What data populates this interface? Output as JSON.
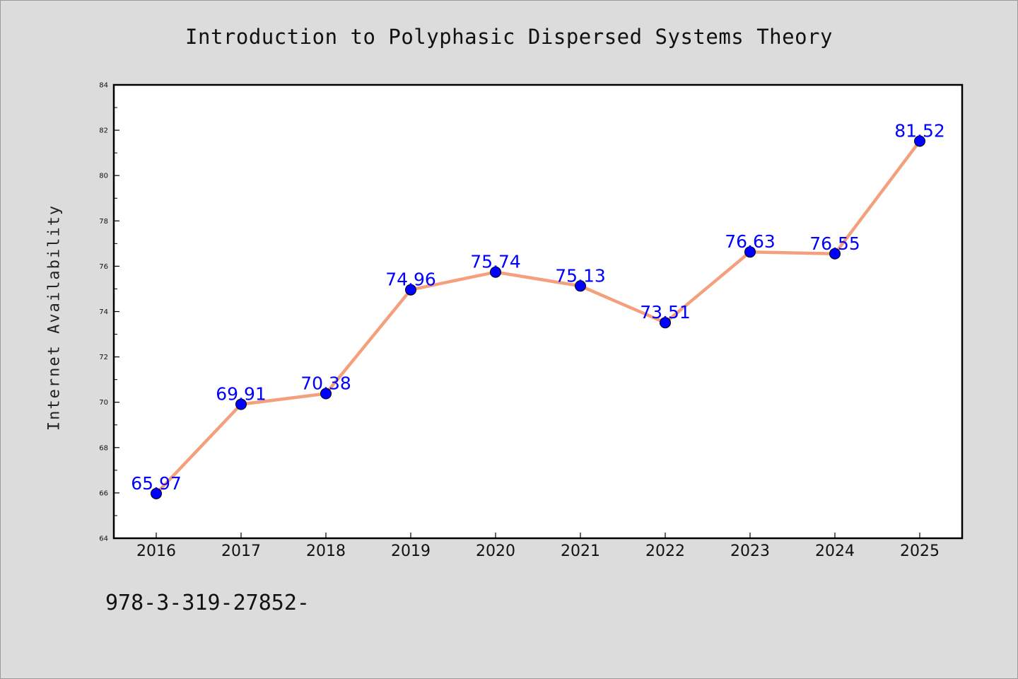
{
  "figure": {
    "background": "#dcdcdc",
    "plot_background": "#ffffff",
    "isbn": "978-3-319-27852-"
  },
  "chart_data": {
    "type": "line",
    "title": "Introduction to Polyphasic Dispersed Systems Theory",
    "xlabel": "",
    "ylabel": "Internet Availability",
    "x": [
      "2016",
      "2017",
      "2018",
      "2019",
      "2020",
      "2021",
      "2022",
      "2023",
      "2024",
      "2025"
    ],
    "series": [
      {
        "values": [
          65.97,
          69.91,
          70.38,
          74.96,
          75.74,
          75.13,
          73.51,
          76.63,
          76.55,
          81.52
        ],
        "labels": [
          "65.97",
          "69.91",
          "70.38",
          "74.96",
          "75.74",
          "75.13",
          "73.51",
          "76.63",
          "76.55",
          "81.52"
        ],
        "line_color": "#f4a07c",
        "marker_color": "#0000ff"
      }
    ],
    "ylim": [
      64,
      84
    ],
    "yticks": [
      "64",
      "66",
      "68",
      "70",
      "72",
      "74",
      "76",
      "78",
      "80",
      "82",
      "84"
    ],
    "grid": false,
    "legend": false,
    "label_color": "#0000ff"
  }
}
